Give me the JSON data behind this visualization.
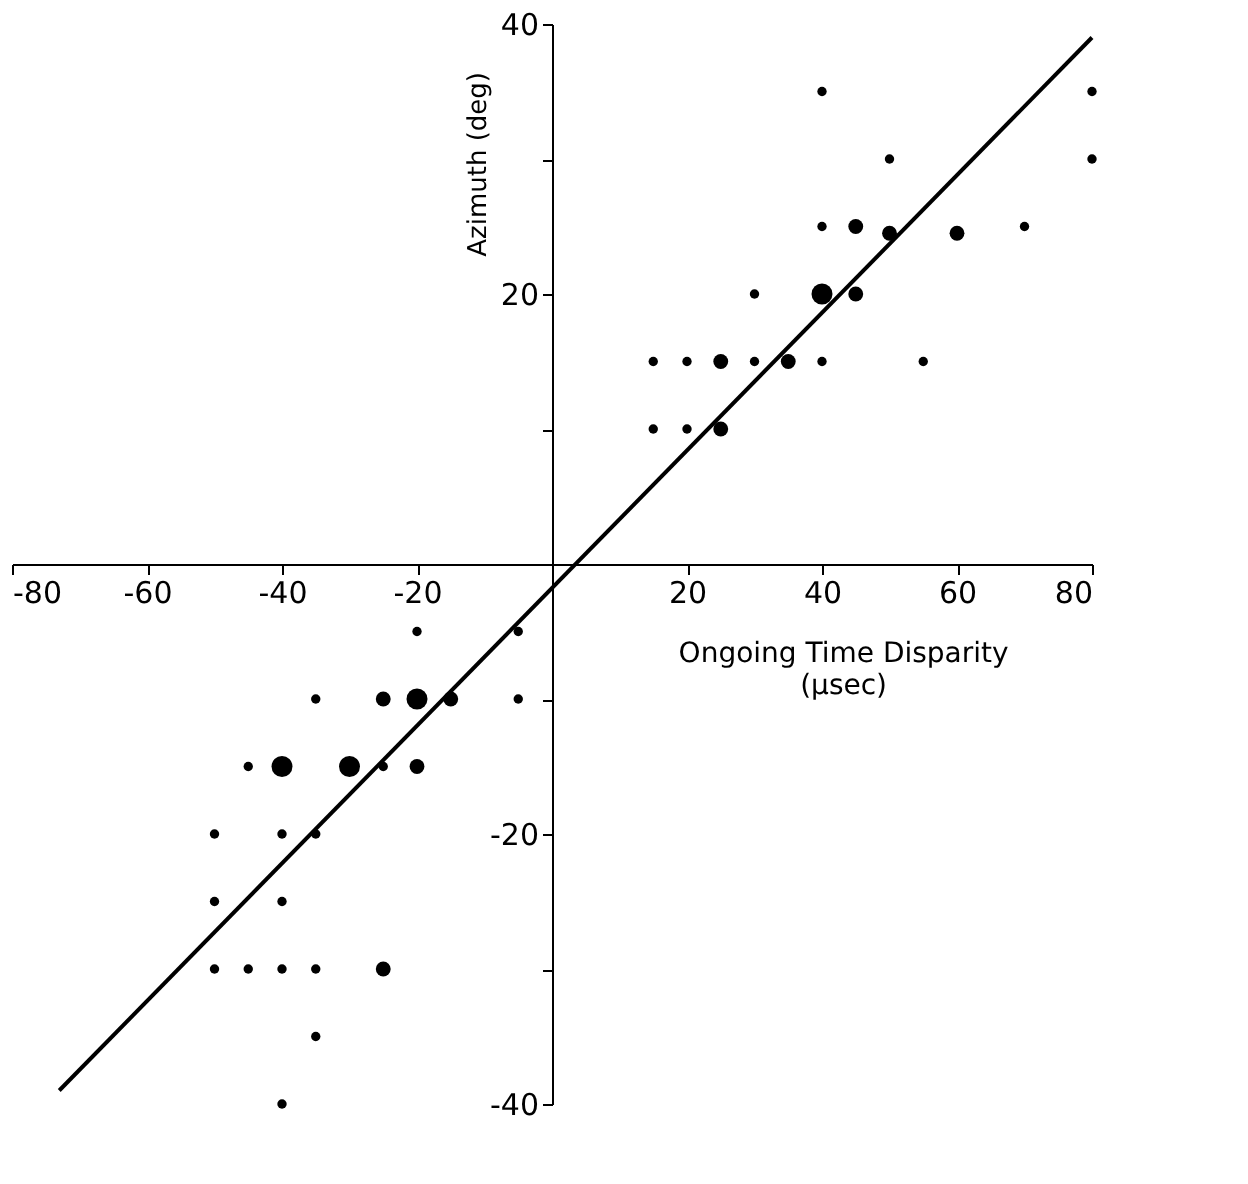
{
  "chart_data": {
    "type": "bubble",
    "xlabel": "Ongoing Time Disparity\n(μsec)",
    "ylabel": "Azimuth (deg)",
    "xlim": [
      -80,
      80
    ],
    "ylim": [
      -40,
      40
    ],
    "xticks": [
      -80,
      -60,
      -40,
      -20,
      20,
      40,
      60,
      80
    ],
    "yticks": [
      -40,
      {
        "value": -30,
        "label": null
      },
      -20,
      {
        "value": -10,
        "label": null
      },
      {
        "value": 10,
        "label": null
      },
      20,
      {
        "value": 30,
        "label": null
      },
      40
    ],
    "grid": false,
    "series": [
      {
        "color": "#000000",
        "marker": "circle",
        "x": [
          40,
          80,
          80,
          50,
          40,
          45,
          50,
          60,
          70,
          30,
          40,
          45,
          15,
          20,
          25,
          30,
          35,
          40,
          55,
          15,
          20,
          25,
          -20,
          -5,
          -35,
          -25,
          -20,
          -15,
          -5,
          -45,
          -40,
          -30,
          -25,
          -20,
          -50,
          -40,
          -35,
          -50,
          -40,
          -50,
          -45,
          -40,
          -35,
          -25,
          -35,
          -40
        ],
        "values": [
          35,
          35,
          30,
          30,
          25,
          25,
          24.5,
          24.5,
          25,
          20,
          20,
          20,
          15,
          15,
          15,
          15,
          15,
          15,
          15,
          10,
          10,
          10,
          -5,
          -5,
          -10,
          -10,
          -10,
          -10,
          -10,
          -15,
          -15,
          -15,
          -15,
          -15,
          -20,
          -20,
          -20,
          -25,
          -25,
          -30,
          -30,
          -30,
          -30,
          -30,
          -35,
          -40
        ],
        "sizes": [
          0.2,
          0.2,
          0.2,
          0.2,
          0.2,
          0.5,
          0.5,
          0.5,
          0.2,
          0.2,
          1,
          0.5,
          0.2,
          0.2,
          0.5,
          0.2,
          0.5,
          0.2,
          0.2,
          0.2,
          0.2,
          0.5,
          0.2,
          0.2,
          0.2,
          0.5,
          1,
          0.5,
          0.2,
          0.2,
          1,
          1,
          0.2,
          0.5,
          0.2,
          0.2,
          0.2,
          0.2,
          0.2,
          0.2,
          0.2,
          0.2,
          0.2,
          0.5,
          0.2,
          0.2
        ]
      },
      {
        "type": "line",
        "color": "#000000",
        "line_style": "solid",
        "x": [
          -73,
          80
        ],
        "values": [
          -39,
          39
        ]
      }
    ]
  }
}
